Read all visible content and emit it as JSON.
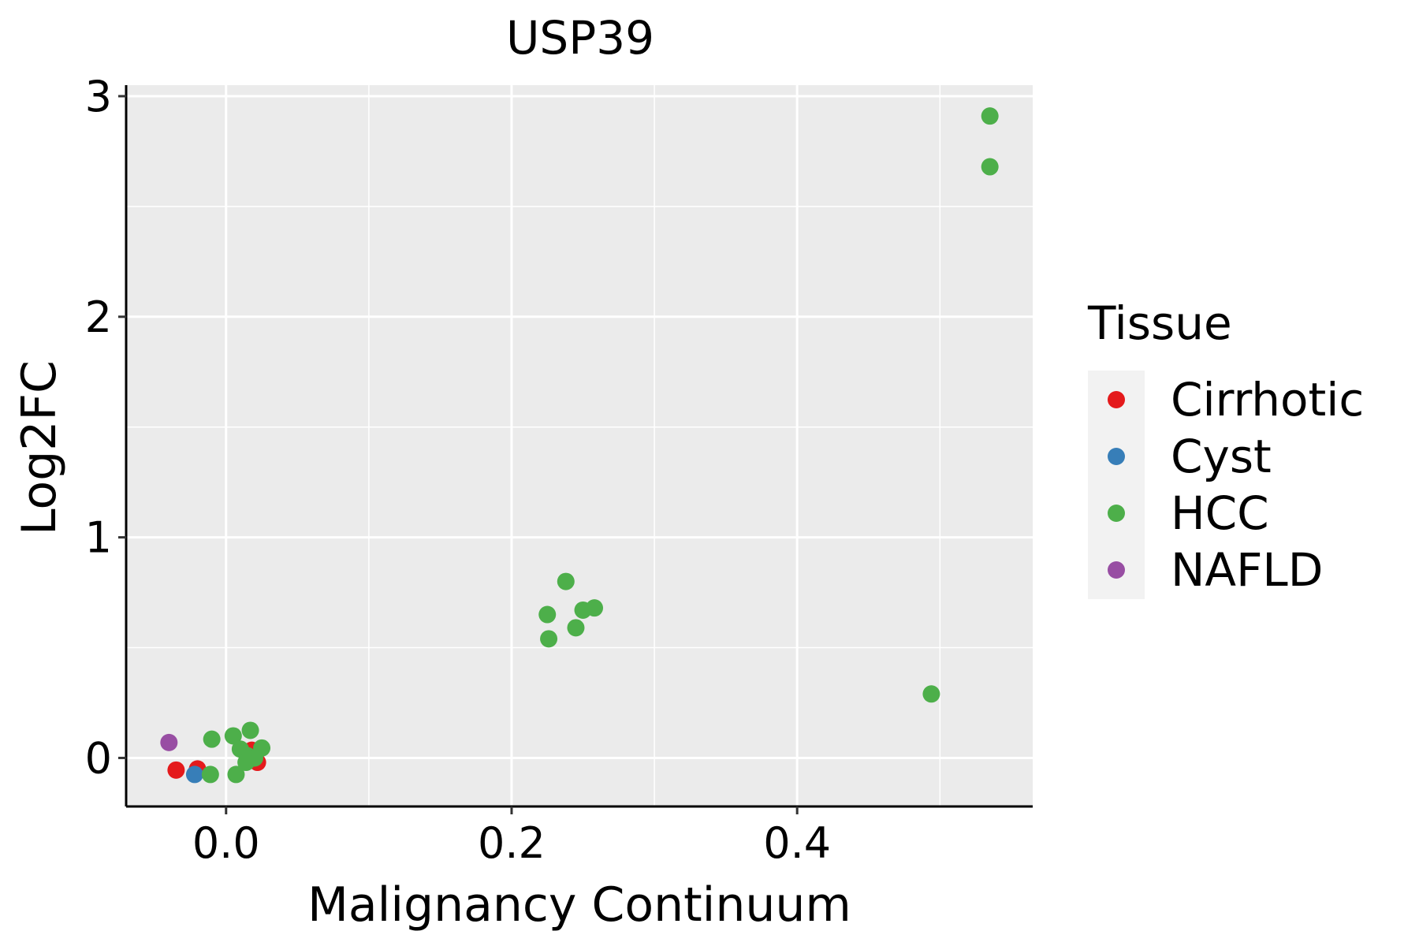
{
  "chart_data": {
    "type": "scatter",
    "title": "USP39",
    "xlabel": "Malignancy Continuum",
    "ylabel": "Log2FC",
    "xlim": [
      -0.07,
      0.565
    ],
    "ylim": [
      -0.22,
      3.05
    ],
    "x_ticks": [
      0.0,
      0.2,
      0.4
    ],
    "x_tick_labels": [
      "0.0",
      "0.2",
      "0.4"
    ],
    "y_ticks": [
      0,
      1,
      2,
      3
    ],
    "y_tick_labels": [
      "0",
      "1",
      "2",
      "3"
    ],
    "grid": true,
    "legend": {
      "title": "Tissue",
      "position": "right"
    },
    "series": [
      {
        "name": "Cirrhotic",
        "color": "#E41A1C",
        "points": [
          [
            -0.035,
            -0.055
          ],
          [
            -0.02,
            -0.05
          ],
          [
            0.018,
            0.035
          ],
          [
            0.022,
            -0.02
          ]
        ]
      },
      {
        "name": "Cyst",
        "color": "#377EB8",
        "points": [
          [
            -0.022,
            -0.075
          ]
        ]
      },
      {
        "name": "HCC",
        "color": "#4DAF4A",
        "points": [
          [
            0.535,
            2.91
          ],
          [
            0.535,
            2.68
          ],
          [
            0.238,
            0.8
          ],
          [
            0.225,
            0.65
          ],
          [
            0.258,
            0.68
          ],
          [
            0.25,
            0.67
          ],
          [
            0.245,
            0.59
          ],
          [
            0.226,
            0.54
          ],
          [
            0.494,
            0.29
          ],
          [
            -0.01,
            0.085
          ],
          [
            0.005,
            0.1
          ],
          [
            0.017,
            0.125
          ],
          [
            0.01,
            0.04
          ],
          [
            0.025,
            0.045
          ],
          [
            0.015,
            0.01
          ],
          [
            0.02,
            0.0
          ],
          [
            0.014,
            -0.02
          ],
          [
            -0.011,
            -0.075
          ],
          [
            0.007,
            -0.075
          ]
        ]
      },
      {
        "name": "NAFLD",
        "color": "#984EA3",
        "points": [
          [
            -0.04,
            0.07
          ]
        ]
      }
    ]
  }
}
